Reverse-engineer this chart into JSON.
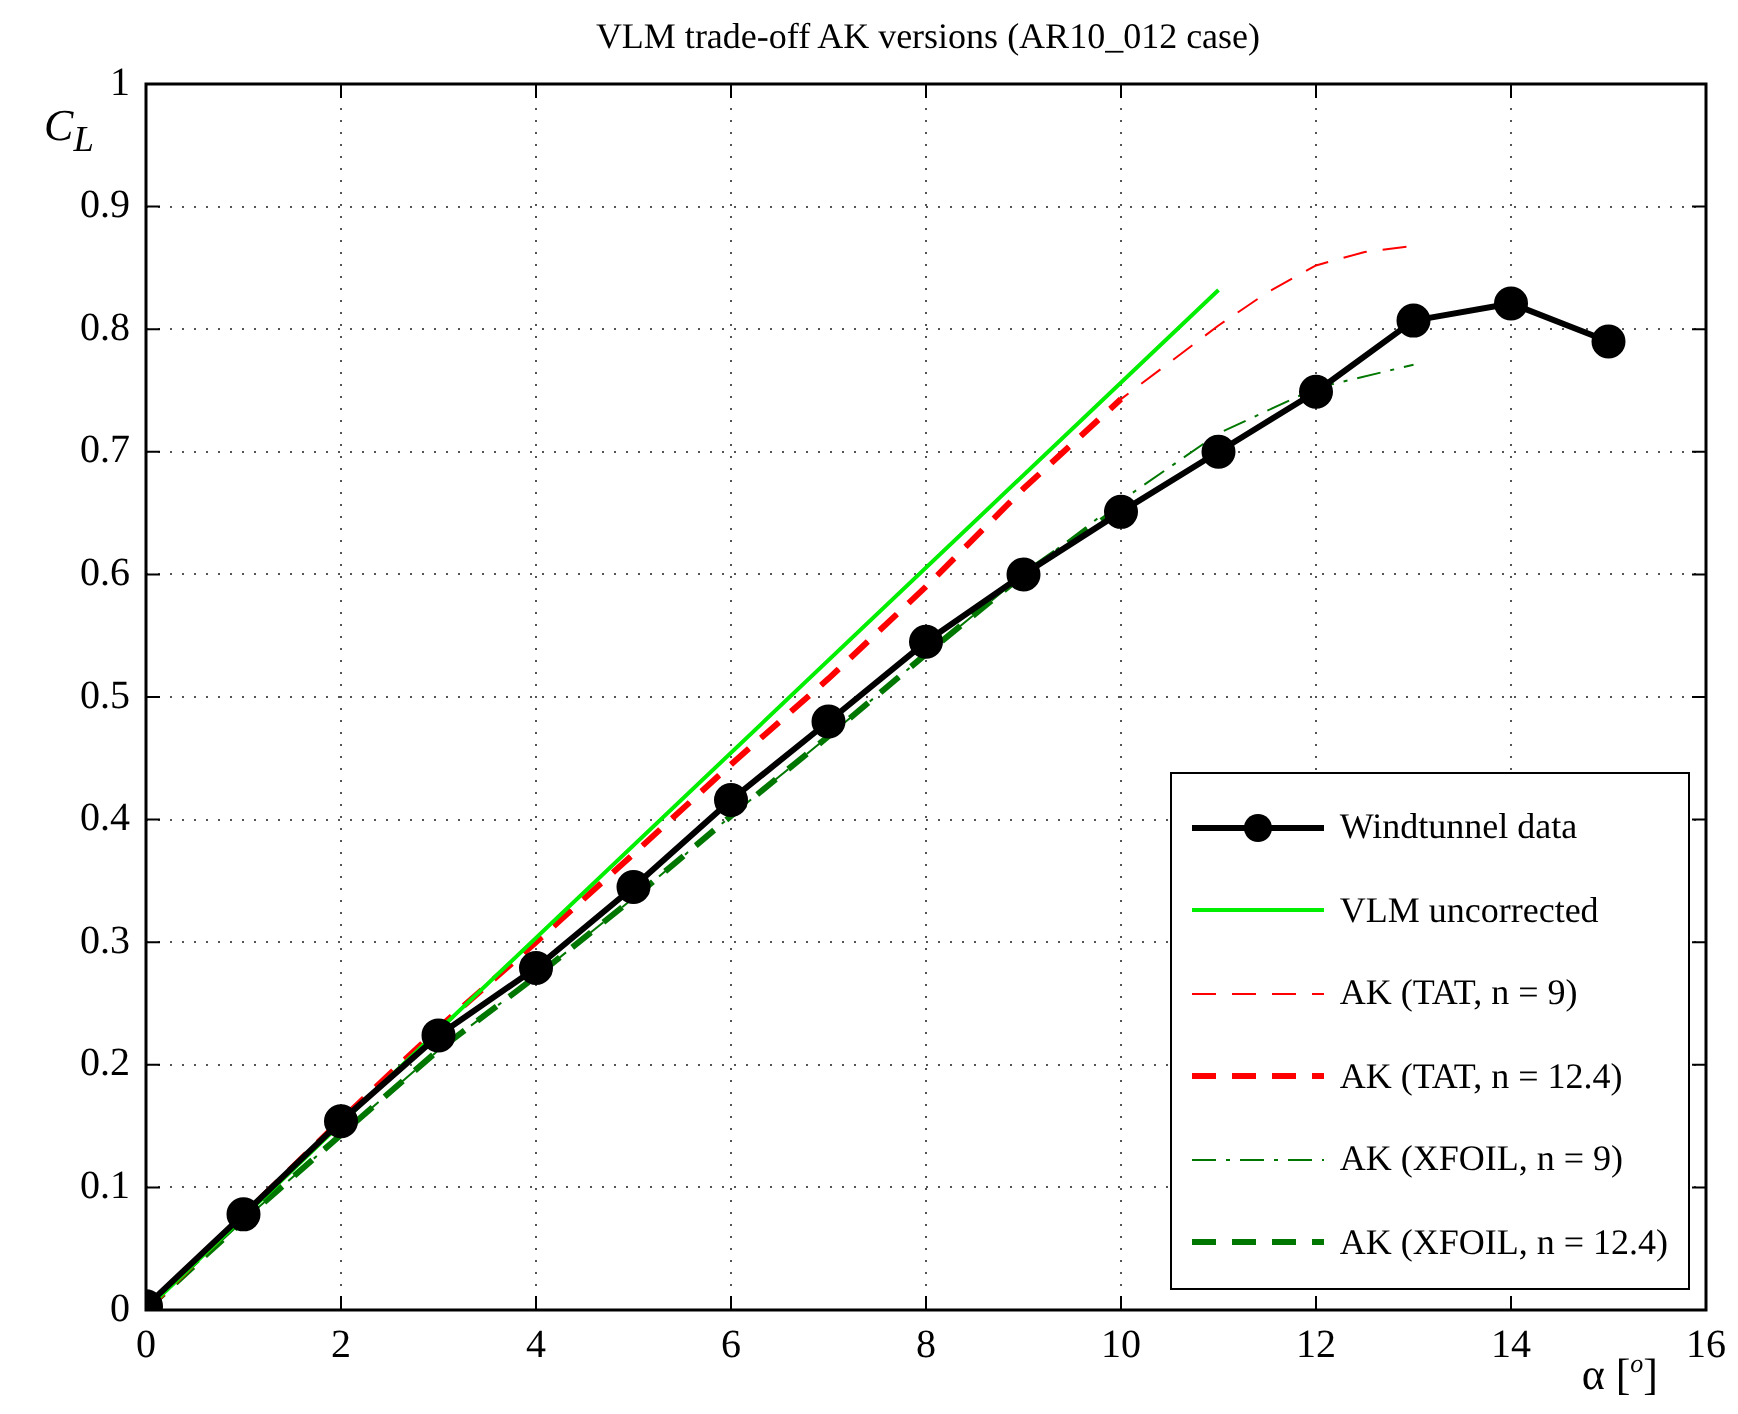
{
  "chart_data": {
    "type": "line",
    "title": "VLM trade-off AK versions (AR10_012 case)",
    "xlabel": "α [$^{o}$]",
    "ylabel": "C$_{L}$",
    "xlim": [
      0,
      16
    ],
    "xticks": [
      0,
      2,
      4,
      6,
      8,
      10,
      12,
      14,
      16
    ],
    "ylim": [
      0,
      1
    ],
    "yticks": [
      0,
      0.1,
      0.2,
      0.3,
      0.4,
      0.5,
      0.6,
      0.7,
      0.8,
      0.9,
      1
    ],
    "grid": true,
    "legend": "bottom right",
    "series": [
      {
        "name": "Windtunnel data",
        "color": "#000000",
        "marker": "circle",
        "line_style": "solid",
        "x": [
          0,
          1,
          2,
          3,
          4,
          5,
          6,
          7,
          8,
          9,
          10,
          11,
          12,
          13,
          14,
          15
        ],
        "values": [
          0.003,
          0.078,
          0.154,
          0.224,
          0.279,
          0.345,
          0.416,
          0.48,
          0.545,
          0.6,
          0.651,
          0.7,
          0.749,
          0.807,
          0.821,
          0.79
        ]
      },
      {
        "name": "VLM uncorrected",
        "color": "#00ee00",
        "marker": "none",
        "line_style": "solid",
        "x": [
          0,
          3,
          11
        ],
        "values": [
          0,
          0.228,
          0.832
        ]
      },
      {
        "name": "AK (TAT, n = 9)",
        "color": "#ff0000",
        "marker": "none",
        "line_style": "dashed",
        "x": [
          0,
          2,
          3,
          4,
          5,
          6,
          7,
          8,
          9,
          10,
          10.5,
          11,
          11.5,
          12,
          12.5,
          13
        ],
        "values": [
          0,
          0.155,
          0.23,
          0.3,
          0.372,
          0.445,
          0.515,
          0.59,
          0.67,
          0.743,
          0.773,
          0.803,
          0.83,
          0.852,
          0.863,
          0.868
        ]
      },
      {
        "name": "AK (TAT, n = 12.4)",
        "color": "#ff0000",
        "marker": "none",
        "line_style": "dashed",
        "x": [
          0,
          2,
          3,
          4,
          5,
          6,
          7,
          8,
          9,
          10
        ],
        "values": [
          0,
          0.155,
          0.23,
          0.3,
          0.372,
          0.445,
          0.515,
          0.59,
          0.67,
          0.743
        ]
      },
      {
        "name": "AK (XFOIL, n = 9)",
        "color": "#007700",
        "marker": "none",
        "line_style": "dashdot",
        "x": [
          0,
          1,
          2,
          3,
          4,
          5,
          6,
          7,
          8,
          9,
          10,
          11,
          12,
          13
        ],
        "values": [
          0,
          0.073,
          0.143,
          0.212,
          0.272,
          0.336,
          0.403,
          0.468,
          0.535,
          0.6,
          0.66,
          0.715,
          0.752,
          0.771
        ]
      },
      {
        "name": "AK (XFOIL, n = 12.4)",
        "color": "#007700",
        "marker": "none",
        "line_style": "dashed",
        "x": [
          0,
          1,
          2,
          3,
          4,
          5,
          6,
          7,
          8,
          9,
          10
        ],
        "values": [
          0,
          0.073,
          0.143,
          0.212,
          0.272,
          0.336,
          0.403,
          0.468,
          0.535,
          0.6,
          0.655
        ]
      }
    ]
  }
}
